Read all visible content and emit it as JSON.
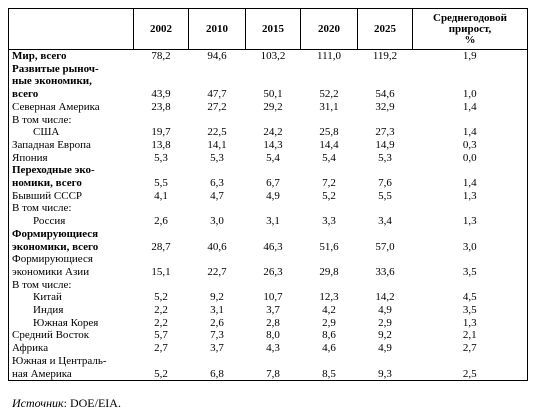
{
  "table": {
    "headers": [
      "2002",
      "2010",
      "2015",
      "2020",
      "2025",
      "Среднегодовой\nприрост,\n%"
    ],
    "rows": [
      {
        "label": "Мир, всего",
        "bold": true,
        "values": [
          "78,2",
          "94,6",
          "103,2",
          "111,0",
          "119,2",
          "1,9"
        ]
      },
      {
        "label": "Развитые рыноч-\nные экономики,\nвсего",
        "bold": true,
        "values": [
          "43,9",
          "47,7",
          "50,1",
          "52,2",
          "54,6",
          "1,0"
        ]
      },
      {
        "label": "Северная Америка",
        "values": [
          "23,8",
          "27,2",
          "29,2",
          "31,1",
          "32,9",
          "1,4"
        ]
      },
      {
        "label": "В том числе:",
        "values": []
      },
      {
        "label": "США",
        "indent": true,
        "values": [
          "19,7",
          "22,5",
          "24,2",
          "25,8",
          "27,3",
          "1,4"
        ]
      },
      {
        "label": "Западная Европа",
        "values": [
          "13,8",
          "14,1",
          "14,3",
          "14,4",
          "14,9",
          "0,3"
        ]
      },
      {
        "label": "Япония",
        "values": [
          "5,3",
          "5,3",
          "5,4",
          "5,4",
          "5,3",
          "0,0"
        ]
      },
      {
        "label": "Переходные эко-\nномики, всего",
        "bold": true,
        "values": [
          "5,5",
          "6,3",
          "6,7",
          "7,2",
          "7,6",
          "1,4"
        ]
      },
      {
        "label": "Бывший СССР",
        "values": [
          "4,1",
          "4,7",
          "4,9",
          "5,2",
          "5,5",
          "1,3"
        ]
      },
      {
        "label": "В том числе:",
        "values": []
      },
      {
        "label": "Россия",
        "indent": true,
        "values": [
          "2,6",
          "3,0",
          "3,1",
          "3,3",
          "3,4",
          "1,3"
        ]
      },
      {
        "label": "Формирующиеся\nэкономики, всего",
        "bold": true,
        "values": [
          "28,7",
          "40,6",
          "46,3",
          "51,6",
          "57,0",
          "3,0"
        ]
      },
      {
        "label": "Формирующиеся\nэкономики Азии",
        "values": [
          "15,1",
          "22,7",
          "26,3",
          "29,8",
          "33,6",
          "3,5"
        ]
      },
      {
        "label": "В том числе:",
        "values": []
      },
      {
        "label": "Китай",
        "indent": true,
        "values": [
          "5,2",
          "9,2",
          "10,7",
          "12,3",
          "14,2",
          "4,5"
        ]
      },
      {
        "label": "Индия",
        "indent": true,
        "values": [
          "2,2",
          "3,1",
          "3,7",
          "4,2",
          "4,9",
          "3,5"
        ]
      },
      {
        "label": "Южная Корея",
        "indent": true,
        "values": [
          "2,2",
          "2,6",
          "2,8",
          "2,9",
          "2,9",
          "1,3"
        ]
      },
      {
        "label": "Средний Восток",
        "values": [
          "5,7",
          "7,3",
          "8,0",
          "8,6",
          "9,2",
          "2,1"
        ]
      },
      {
        "label": "Африка",
        "values": [
          "2,7",
          "3,7",
          "4,3",
          "4,6",
          "4,9",
          "2,7"
        ]
      },
      {
        "label": "Южная и Централь-\nная Америка",
        "values": [
          "5,2",
          "6,8",
          "7,8",
          "8,5",
          "9,3",
          "2,5"
        ]
      }
    ]
  },
  "footer": {
    "source_label": "Источник",
    "source_text": ": DOE/EIA."
  }
}
